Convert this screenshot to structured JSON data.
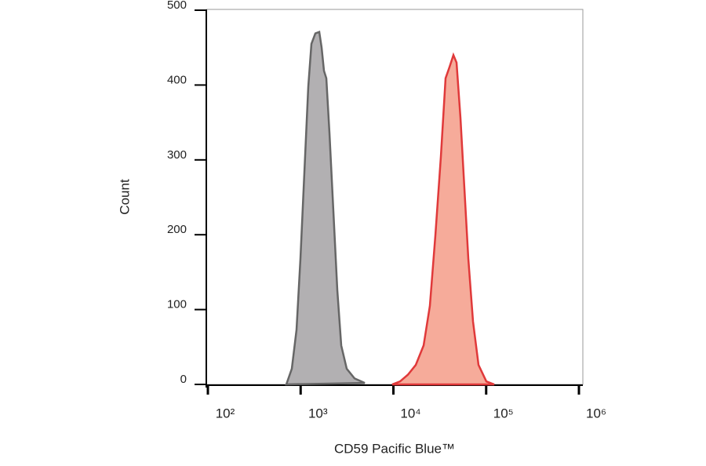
{
  "chart_data": {
    "type": "area",
    "x_label": "CD59 Pacific Blue™",
    "y_label": "Count",
    "xscale": "log",
    "xlim": [
      100,
      1000000
    ],
    "xticks": [
      {
        "value": 100,
        "label": "10²"
      },
      {
        "value": 1000,
        "label": "10³"
      },
      {
        "value": 10000,
        "label": "10⁴"
      },
      {
        "value": 100000,
        "label": "10⁵"
      },
      {
        "value": 1000000,
        "label": "10⁶"
      }
    ],
    "ylim": [
      0,
      500
    ],
    "yticks": [
      0,
      100,
      200,
      300,
      400,
      500
    ],
    "grid": false,
    "series": [
      {
        "color": "#666666",
        "fill": "#b2b0b2",
        "x": [
          701,
          804,
          903,
          995,
          1097,
          1209,
          1307,
          1441,
          1588,
          1684,
          1785,
          1892,
          2045,
          2255,
          2485,
          2739,
          3140,
          3814,
          4913
        ],
        "values": [
          0,
          21,
          73,
          168,
          283,
          398,
          455,
          469,
          471,
          450,
          419,
          409,
          336,
          231,
          126,
          52,
          21,
          8,
          2
        ]
      },
      {
        "color": "#e0393a",
        "fill": "#f6ab9a",
        "x": [
          9713,
          11800,
          14330,
          17420,
          21170,
          24730,
          28350,
          32480,
          36510,
          40240,
          44360,
          47950,
          52840,
          58260,
          64210,
          72190,
          82720,
          100500,
          122100
        ],
        "values": [
          0,
          4,
          13,
          26,
          52,
          105,
          199,
          304,
          409,
          424,
          440,
          430,
          356,
          262,
          168,
          84,
          26,
          4,
          0
        ]
      }
    ]
  }
}
